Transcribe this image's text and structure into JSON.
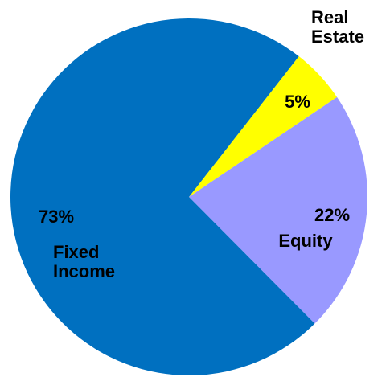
{
  "chart_data": {
    "type": "pie",
    "categories": [
      "Real Estate",
      "Equity",
      "Fixed Income"
    ],
    "values": [
      5,
      22,
      73
    ],
    "value_labels": [
      "5%",
      "22%",
      "73%"
    ],
    "colors": [
      "#ffff00",
      "#9999ff",
      "#0070c0"
    ]
  }
}
